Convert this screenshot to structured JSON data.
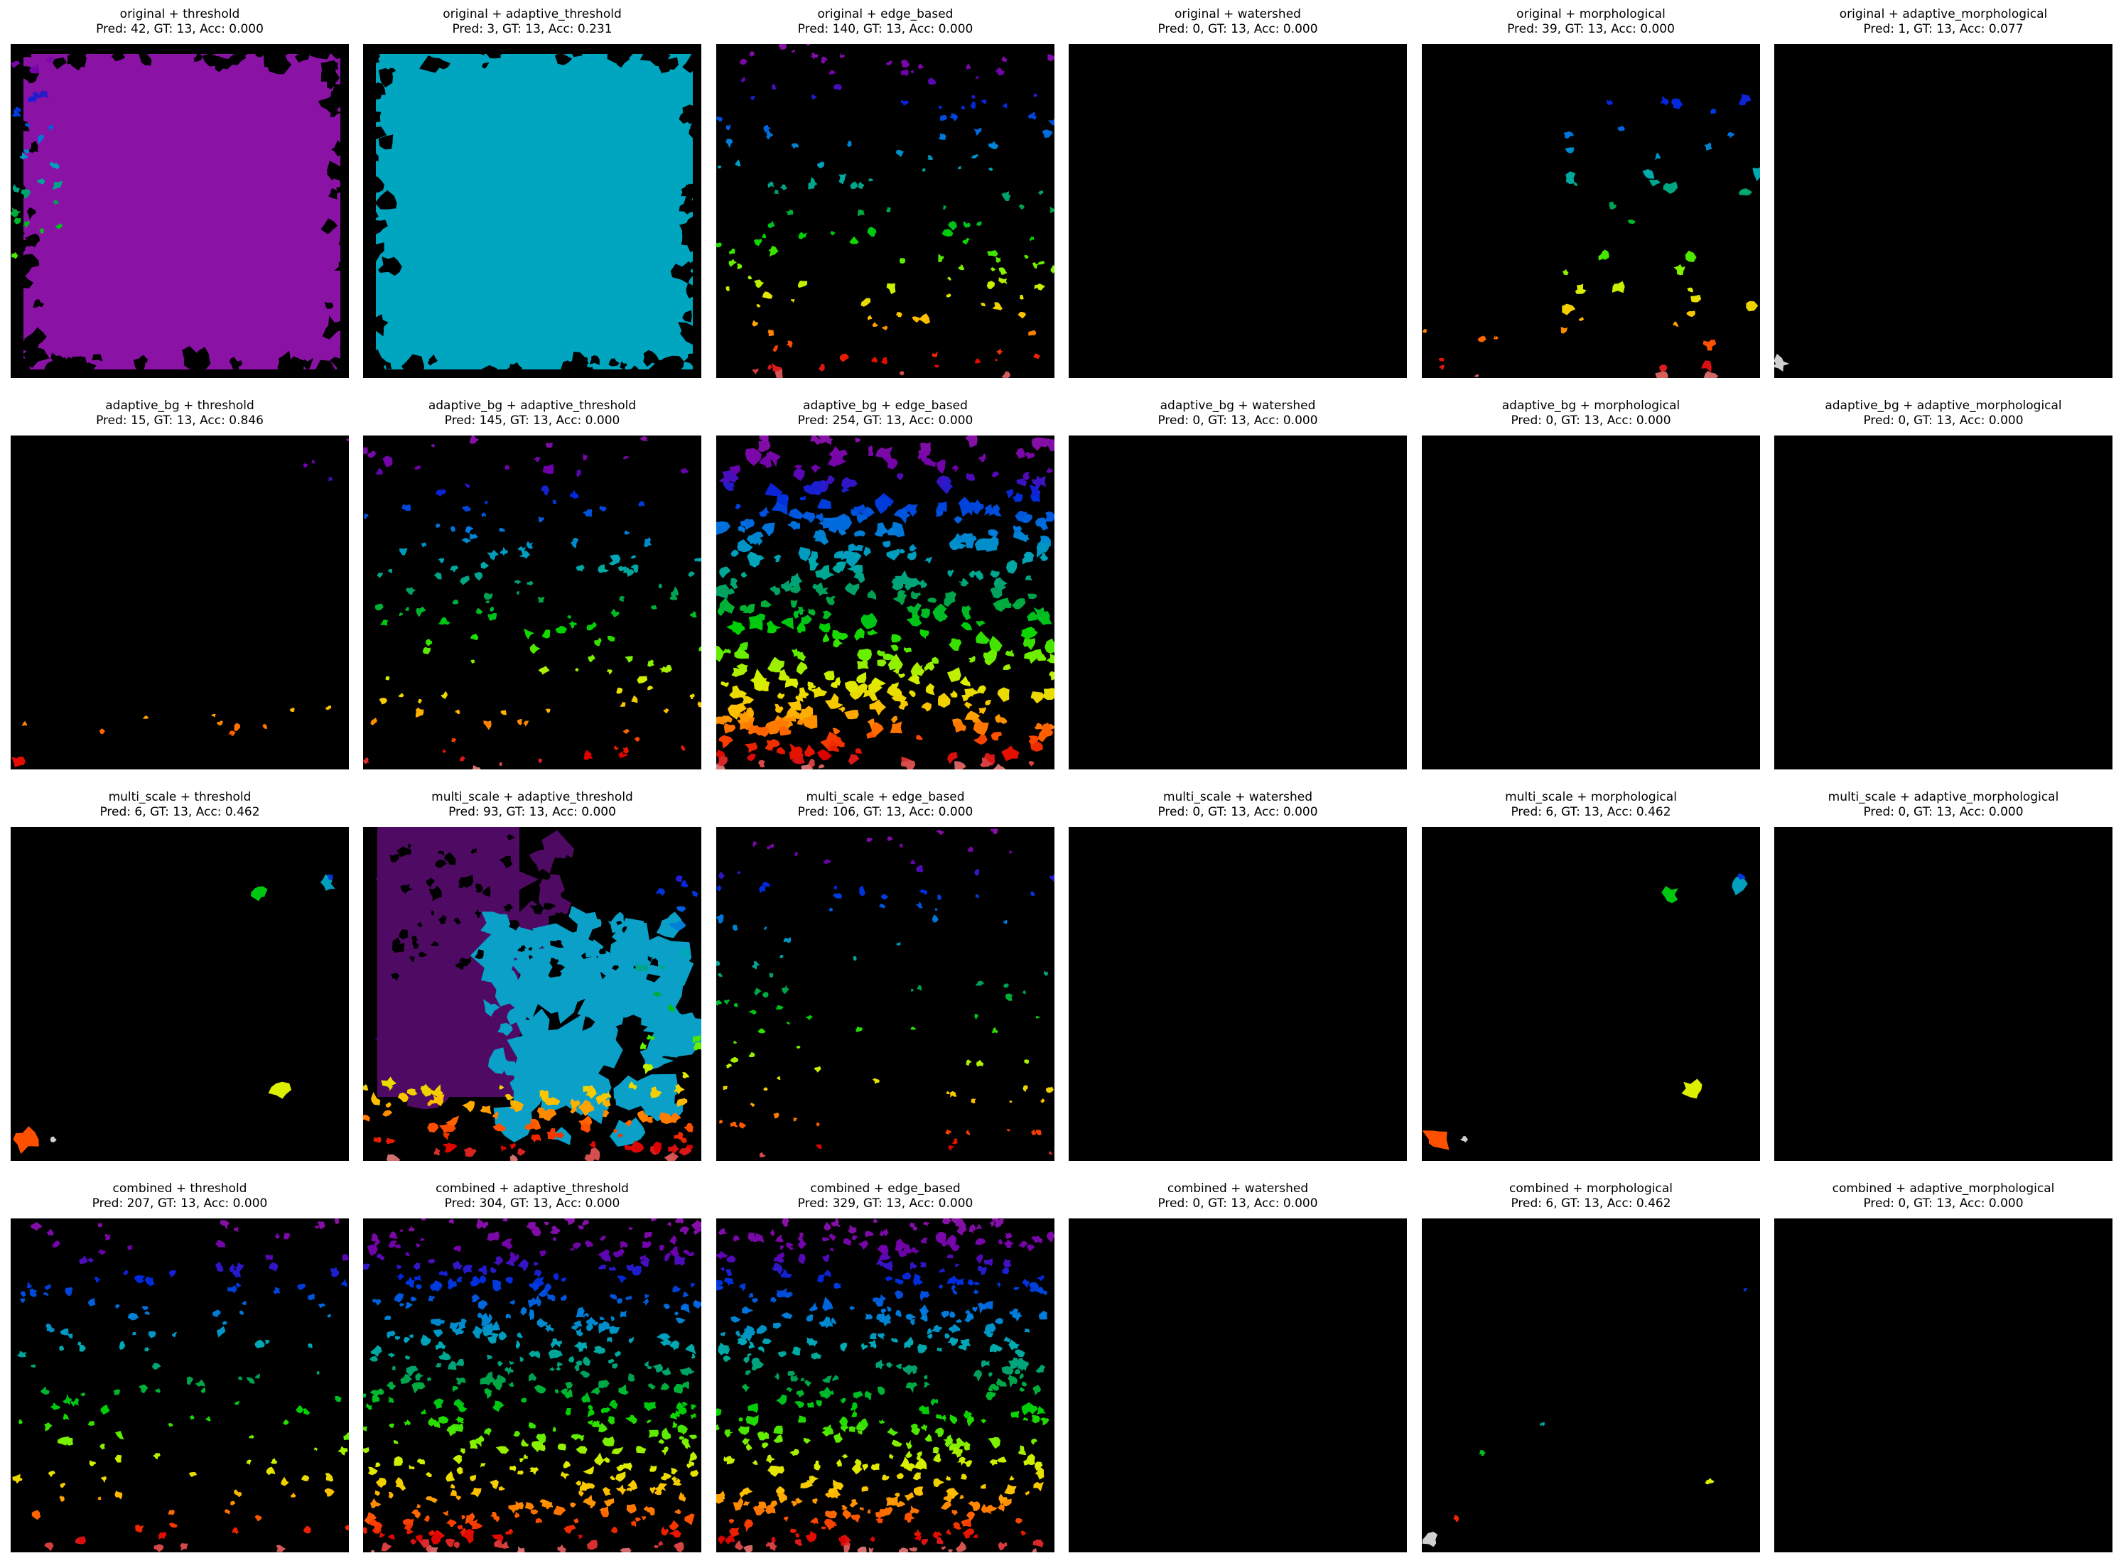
{
  "figure": {
    "rows": [
      {
        "panels": [
          {
            "title": "original + threshold",
            "stats": "Pred: 42, GT: 13, Acc: 0.000",
            "pattern": "flood",
            "fill": "#8a13a6"
          },
          {
            "title": "original + adaptive_threshold",
            "stats": "Pred: 3, GT: 13, Acc: 0.231",
            "pattern": "flood",
            "fill": "#00a5bf"
          },
          {
            "title": "original + edge_based",
            "stats": "Pred: 140, GT: 13, Acc: 0.000",
            "pattern": "sparse_medium"
          },
          {
            "title": "original + watershed",
            "stats": "Pred: 0, GT: 13, Acc: 0.000",
            "pattern": "empty"
          },
          {
            "title": "original + morphological",
            "stats": "Pred: 39, GT: 13, Acc: 0.000",
            "pattern": "right_cluster"
          },
          {
            "title": "original + adaptive_morphological",
            "stats": "Pred: 1, GT: 13, Acc: 0.077",
            "pattern": "single_corner"
          }
        ]
      },
      {
        "panels": [
          {
            "title": "adaptive_bg + threshold",
            "stats": "Pred: 15, GT: 13, Acc: 0.846",
            "pattern": "few"
          },
          {
            "title": "adaptive_bg + adaptive_threshold",
            "stats": "Pred: 145, GT: 13, Acc: 0.000",
            "pattern": "sparse_medium"
          },
          {
            "title": "adaptive_bg + edge_based",
            "stats": "Pred: 254, GT: 13, Acc: 0.000",
            "pattern": "dense_large"
          },
          {
            "title": "adaptive_bg + watershed",
            "stats": "Pred: 0, GT: 13, Acc: 0.000",
            "pattern": "empty"
          },
          {
            "title": "adaptive_bg + morphological",
            "stats": "Pred: 0, GT: 13, Acc: 0.000",
            "pattern": "empty"
          },
          {
            "title": "adaptive_bg + adaptive_morphological",
            "stats": "Pred: 0, GT: 13, Acc: 0.000",
            "pattern": "empty"
          }
        ]
      },
      {
        "panels": [
          {
            "title": "multi_scale + threshold",
            "stats": "Pred: 6, GT: 13, Acc: 0.462",
            "pattern": "few_blobs"
          },
          {
            "title": "multi_scale + adaptive_threshold",
            "stats": "Pred: 93, GT: 13, Acc: 0.000",
            "pattern": "big_regions"
          },
          {
            "title": "multi_scale + edge_based",
            "stats": "Pred: 106, GT: 13, Acc: 0.000",
            "pattern": "sparse_small"
          },
          {
            "title": "multi_scale + watershed",
            "stats": "Pred: 0, GT: 13, Acc: 0.000",
            "pattern": "empty"
          },
          {
            "title": "multi_scale + morphological",
            "stats": "Pred: 6, GT: 13, Acc: 0.462",
            "pattern": "few_blobs"
          },
          {
            "title": "multi_scale + adaptive_morphological",
            "stats": "Pred: 0, GT: 13, Acc: 0.000",
            "pattern": "empty"
          }
        ]
      },
      {
        "panels": [
          {
            "title": "combined + threshold",
            "stats": "Pred: 207, GT: 13, Acc: 0.000",
            "pattern": "sparse_medium"
          },
          {
            "title": "combined + adaptive_threshold",
            "stats": "Pred: 304, GT: 13, Acc: 0.000",
            "pattern": "dense"
          },
          {
            "title": "combined + edge_based",
            "stats": "Pred: 329, GT: 13, Acc: 0.000",
            "pattern": "dense"
          },
          {
            "title": "combined + watershed",
            "stats": "Pred: 0, GT: 13, Acc: 0.000",
            "pattern": "empty"
          },
          {
            "title": "combined + morphological",
            "stats": "Pred: 6, GT: 13, Acc: 0.462",
            "pattern": "tiny_few"
          },
          {
            "title": "combined + adaptive_morphological",
            "stats": "Pred: 0, GT: 13, Acc: 0.000",
            "pattern": "empty"
          }
        ]
      }
    ]
  }
}
